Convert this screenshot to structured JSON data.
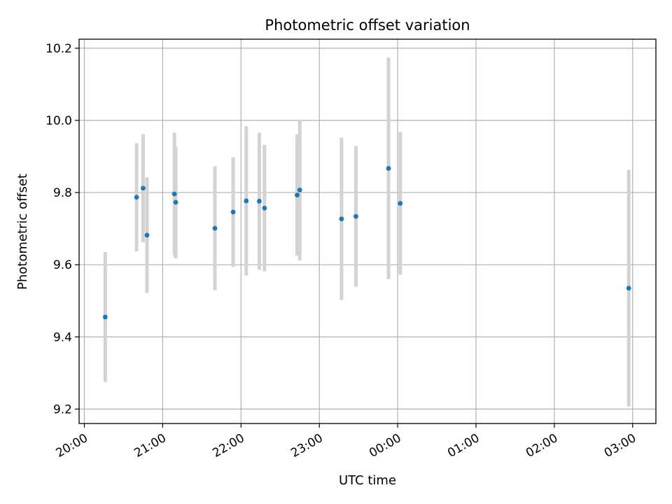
{
  "chart_data": {
    "type": "scatter",
    "title": "Photometric offset variation",
    "xlabel": "UTC time",
    "ylabel": "Photometric offset",
    "x_axis_type": "time",
    "x_range": [
      "19:56",
      "03:18"
    ],
    "x_ticks": [
      "20:00",
      "21:00",
      "22:00",
      "23:00",
      "00:00",
      "01:00",
      "02:00",
      "03:00"
    ],
    "ylim": [
      9.16,
      10.225
    ],
    "y_ticks": [
      "9.2",
      "9.4",
      "9.6",
      "9.8",
      "10.0",
      "10.2"
    ],
    "grid": true,
    "series": [
      {
        "style": "points with error bars",
        "point_color": "#1f77b4",
        "error_bar_color": "#d3d3d3",
        "points": [
          {
            "x": "20:16",
            "y": 9.455,
            "err": 0.18
          },
          {
            "x": "20:40",
            "y": 9.787,
            "err": 0.15
          },
          {
            "x": "20:45",
            "y": 9.812,
            "err": 0.15
          },
          {
            "x": "20:48",
            "y": 9.682,
            "err": 0.16
          },
          {
            "x": "21:09",
            "y": 9.796,
            "err": 0.17
          },
          {
            "x": "21:10",
            "y": 9.773,
            "err": 0.155
          },
          {
            "x": "21:40",
            "y": 9.701,
            "err": 0.172
          },
          {
            "x": "21:54",
            "y": 9.746,
            "err": 0.152
          },
          {
            "x": "22:04",
            "y": 9.777,
            "err": 0.207
          },
          {
            "x": "22:14",
            "y": 9.776,
            "err": 0.19
          },
          {
            "x": "22:18",
            "y": 9.757,
            "err": 0.175
          },
          {
            "x": "22:43",
            "y": 9.793,
            "err": 0.168
          },
          {
            "x": "22:45",
            "y": 9.807,
            "err": 0.195
          },
          {
            "x": "23:17",
            "y": 9.727,
            "err": 0.225
          },
          {
            "x": "23:28",
            "y": 9.734,
            "err": 0.195
          },
          {
            "x": "23:53",
            "y": 9.867,
            "err": 0.307
          },
          {
            "x": "00:02",
            "y": 9.77,
            "err": 0.198
          },
          {
            "x": "02:57",
            "y": 9.535,
            "err": 0.328
          }
        ]
      }
    ]
  }
}
